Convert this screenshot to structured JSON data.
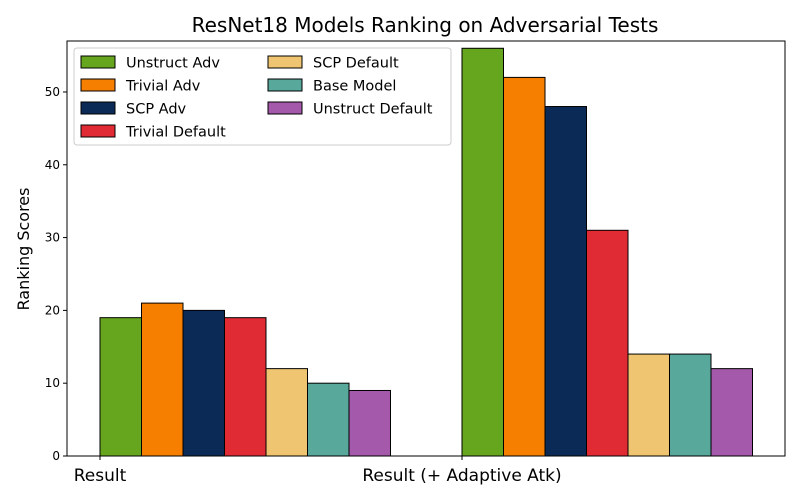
{
  "chart_data": {
    "type": "bar",
    "title": "ResNet18 Models Ranking on Adversarial Tests",
    "xlabel": "",
    "ylabel": "Ranking Scores",
    "categories": [
      "Result",
      "Result (+ Adaptive Atk)"
    ],
    "ylim": [
      0,
      57
    ],
    "yticks": [
      0,
      10,
      20,
      30,
      40,
      50
    ],
    "grid": false,
    "legend_position": "top-left",
    "legend_columns": 2,
    "series": [
      {
        "name": "Unstruct Adv",
        "color": "#66a61e",
        "values": [
          19,
          56
        ]
      },
      {
        "name": "Trivial Adv",
        "color": "#f77f00",
        "values": [
          21,
          52
        ]
      },
      {
        "name": "SCP Adv",
        "color": "#0b2a55",
        "values": [
          20,
          48
        ]
      },
      {
        "name": "Trivial Default",
        "color": "#e02b35",
        "values": [
          19,
          31
        ]
      },
      {
        "name": "SCP Default",
        "color": "#f0c571",
        "values": [
          12,
          14
        ]
      },
      {
        "name": "Base Model",
        "color": "#59a89c",
        "values": [
          10,
          14
        ]
      },
      {
        "name": "Unstruct Default",
        "color": "#a559aa",
        "values": [
          9,
          12
        ]
      }
    ]
  }
}
